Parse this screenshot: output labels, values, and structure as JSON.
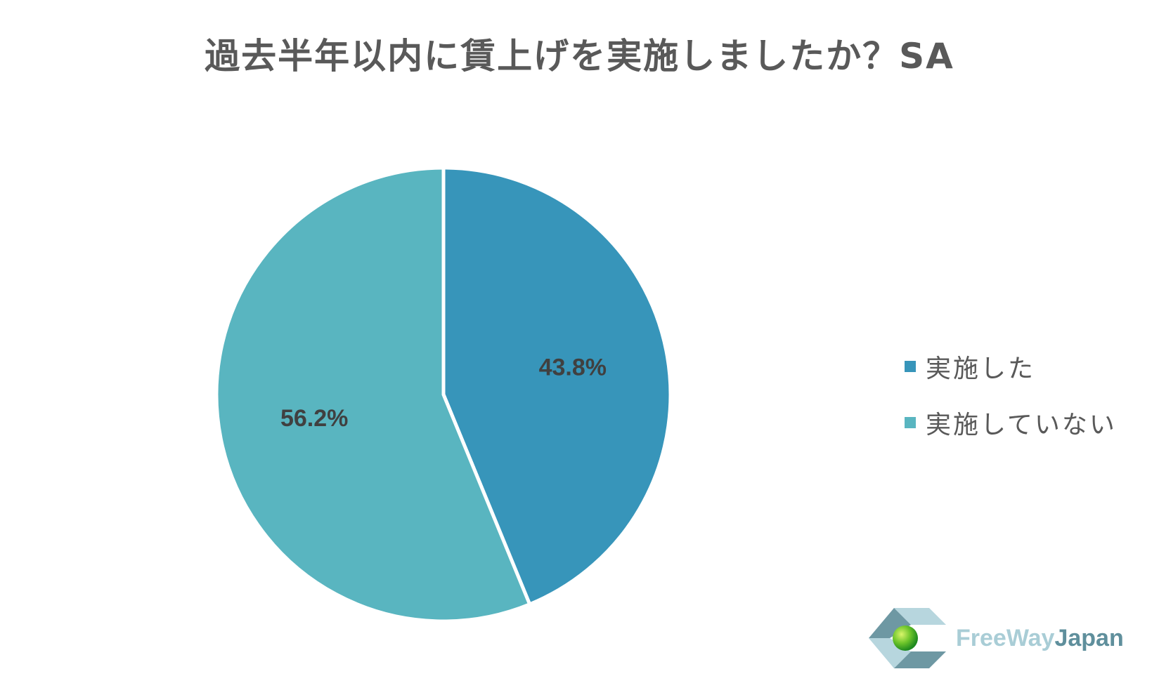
{
  "title": "過去半年以内に賃上げを実施しましたか？SA",
  "chart_data": {
    "type": "pie",
    "categories": [
      "実施した",
      "実施していない"
    ],
    "values": [
      43.8,
      56.2
    ],
    "labels": [
      "43.8%",
      "56.2%"
    ],
    "colors": [
      "#3795ba",
      "#59b5c0"
    ],
    "start_angle": "top (12 o'clock), clockwise",
    "legend_position": "right"
  },
  "legend": {
    "items": [
      {
        "label": "実施した",
        "color": "#3795ba"
      },
      {
        "label": "実施していない",
        "color": "#59b5c0"
      }
    ]
  },
  "logo": {
    "text_part1": "FreeWay",
    "text_part2": "Japan"
  }
}
